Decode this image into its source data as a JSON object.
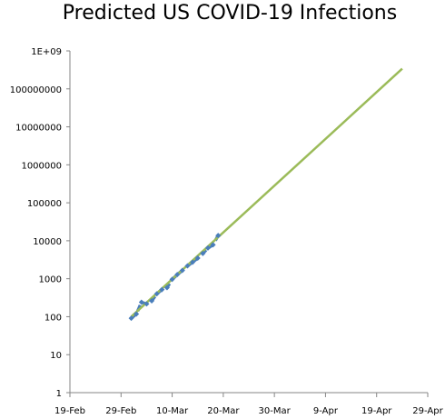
{
  "chart_data": {
    "type": "scatter",
    "title": "Predicted US COVID-19 Infections",
    "xlabel": "",
    "ylabel": "",
    "yscale": "log",
    "ylim": [
      1,
      1000000000
    ],
    "xlim": [
      "2020-02-19",
      "2020-04-29"
    ],
    "x_tick_labels": [
      "19-Feb",
      "29-Feb",
      "10-Mar",
      "20-Mar",
      "30-Mar",
      "9-Apr",
      "19-Apr",
      "29-Apr"
    ],
    "y_tick_labels": [
      "1",
      "10",
      "100",
      "1000",
      "10000",
      "100000",
      "1000000",
      "10000000",
      "100000000",
      "1E+09"
    ],
    "grid": false,
    "legend": "none",
    "series": [
      {
        "style": "dashed-with-markers",
        "color": "#4a7ebb",
        "points": [
          {
            "x": "2020-03-02",
            "y": 91
          },
          {
            "x": "2020-03-03",
            "y": 118
          },
          {
            "x": "2020-03-04",
            "y": 240
          },
          {
            "x": "2020-03-05",
            "y": 217
          },
          {
            "x": "2020-03-06",
            "y": 262
          },
          {
            "x": "2020-03-07",
            "y": 402
          },
          {
            "x": "2020-03-08",
            "y": 518
          },
          {
            "x": "2020-03-09",
            "y": 583
          },
          {
            "x": "2020-03-10",
            "y": 959
          },
          {
            "x": "2020-03-11",
            "y": 1281
          },
          {
            "x": "2020-03-12",
            "y": 1663
          },
          {
            "x": "2020-03-13",
            "y": 2179
          },
          {
            "x": "2020-03-14",
            "y": 2727
          },
          {
            "x": "2020-03-15",
            "y": 3499
          },
          {
            "x": "2020-03-16",
            "y": 4632
          },
          {
            "x": "2020-03-17",
            "y": 6421
          },
          {
            "x": "2020-03-18",
            "y": 7783
          },
          {
            "x": "2020-03-19",
            "y": 13747
          }
        ]
      },
      {
        "style": "trendline",
        "color": "#9bbb59",
        "points": [
          {
            "x": "2020-03-02",
            "y": 100
          },
          {
            "x": "2020-04-24",
            "y": 340000000
          }
        ]
      }
    ]
  }
}
